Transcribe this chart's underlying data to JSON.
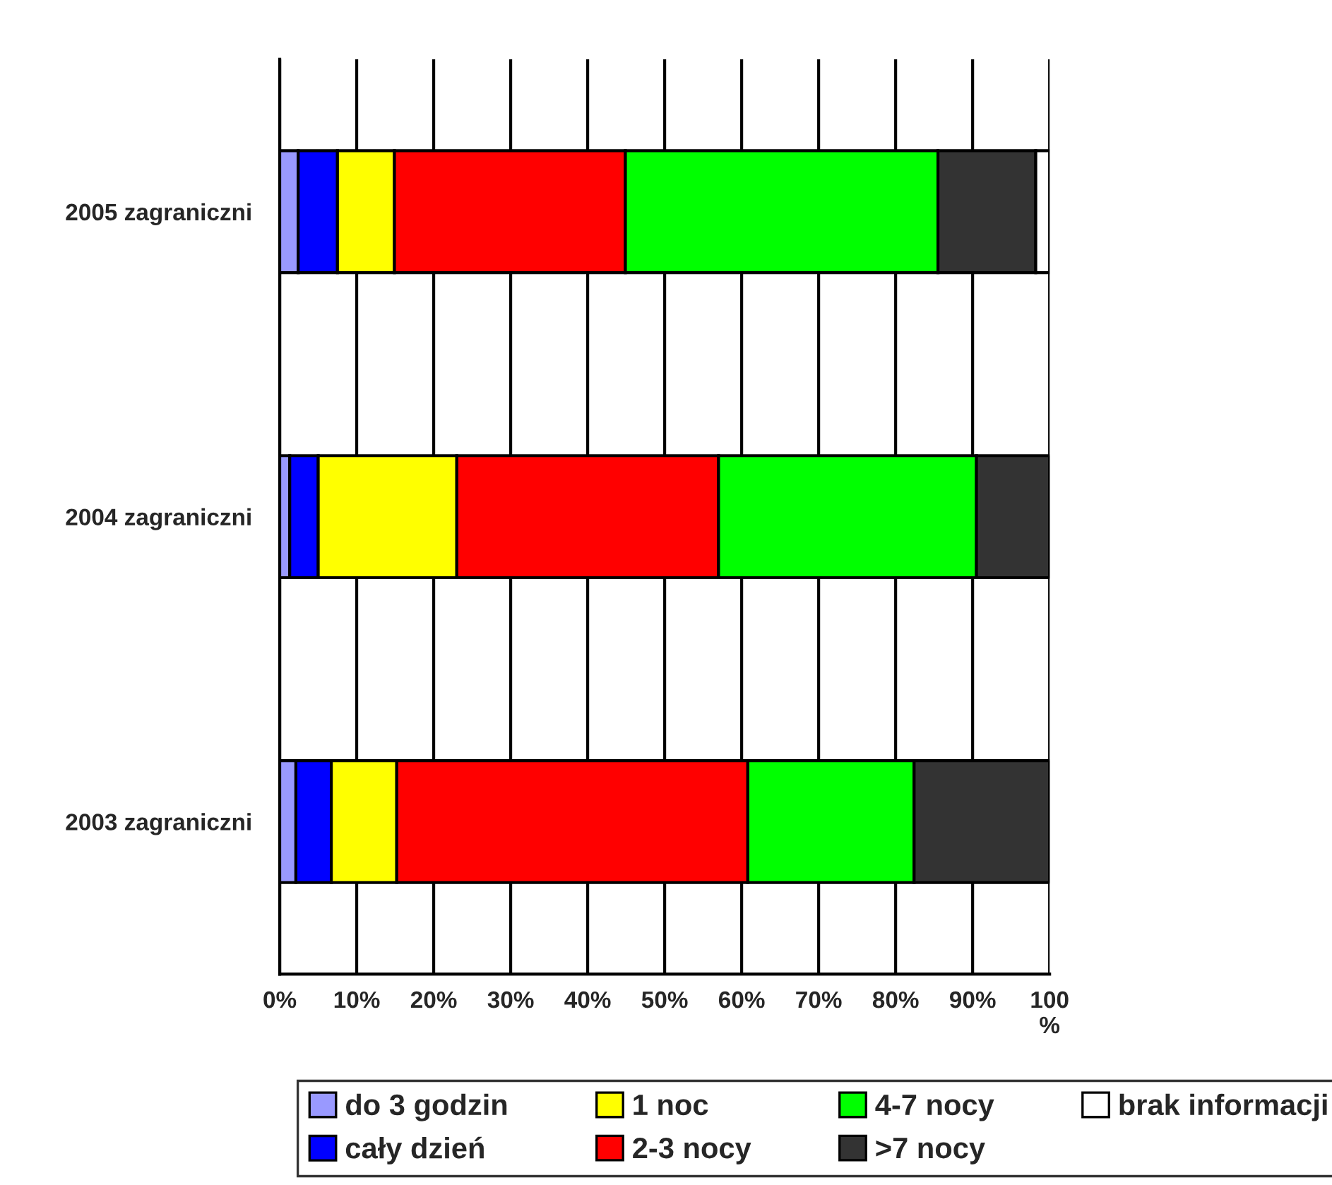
{
  "chart_data": {
    "type": "bar",
    "orientation": "horizontal",
    "stacked": true,
    "categories": [
      "2005 zagraniczni",
      "2004 zagraniczni",
      "2003 zagraniczni"
    ],
    "series": [
      {
        "name": "do 3 godzin",
        "color": "#9999ff",
        "values": [
          2.4,
          1.3,
          2.1
        ]
      },
      {
        "name": "cały dzień",
        "color": "#0000ff",
        "values": [
          5.1,
          3.7,
          4.6
        ]
      },
      {
        "name": "1 noc",
        "color": "#ffff00",
        "values": [
          7.4,
          18.0,
          8.5
        ]
      },
      {
        "name": "2-3 nocy",
        "color": "#ff0000",
        "values": [
          30.0,
          34.0,
          45.6
        ]
      },
      {
        "name": "4-7 nocy",
        "color": "#00ff00",
        "values": [
          40.6,
          33.5,
          21.6
        ]
      },
      {
        "name": ">7 nocy",
        "color": "#333333",
        "values": [
          12.7,
          9.5,
          17.6
        ]
      },
      {
        "name": "brak informacji",
        "color": "#ffffff",
        "values": [
          1.8,
          0,
          0
        ]
      }
    ],
    "xlim": [
      0,
      100
    ],
    "xticks": [
      {
        "value": 0,
        "label": "0%"
      },
      {
        "value": 10,
        "label": "10%"
      },
      {
        "value": 20,
        "label": "20%"
      },
      {
        "value": 30,
        "label": "30%"
      },
      {
        "value": 40,
        "label": "40%"
      },
      {
        "value": 50,
        "label": "50%"
      },
      {
        "value": 60,
        "label": "60%"
      },
      {
        "value": 70,
        "label": "70%"
      },
      {
        "value": 80,
        "label": "80%"
      },
      {
        "value": 90,
        "label": "90%"
      },
      {
        "value": 100,
        "label": "100\n%"
      }
    ],
    "grid": "x",
    "legend": "bottom"
  }
}
